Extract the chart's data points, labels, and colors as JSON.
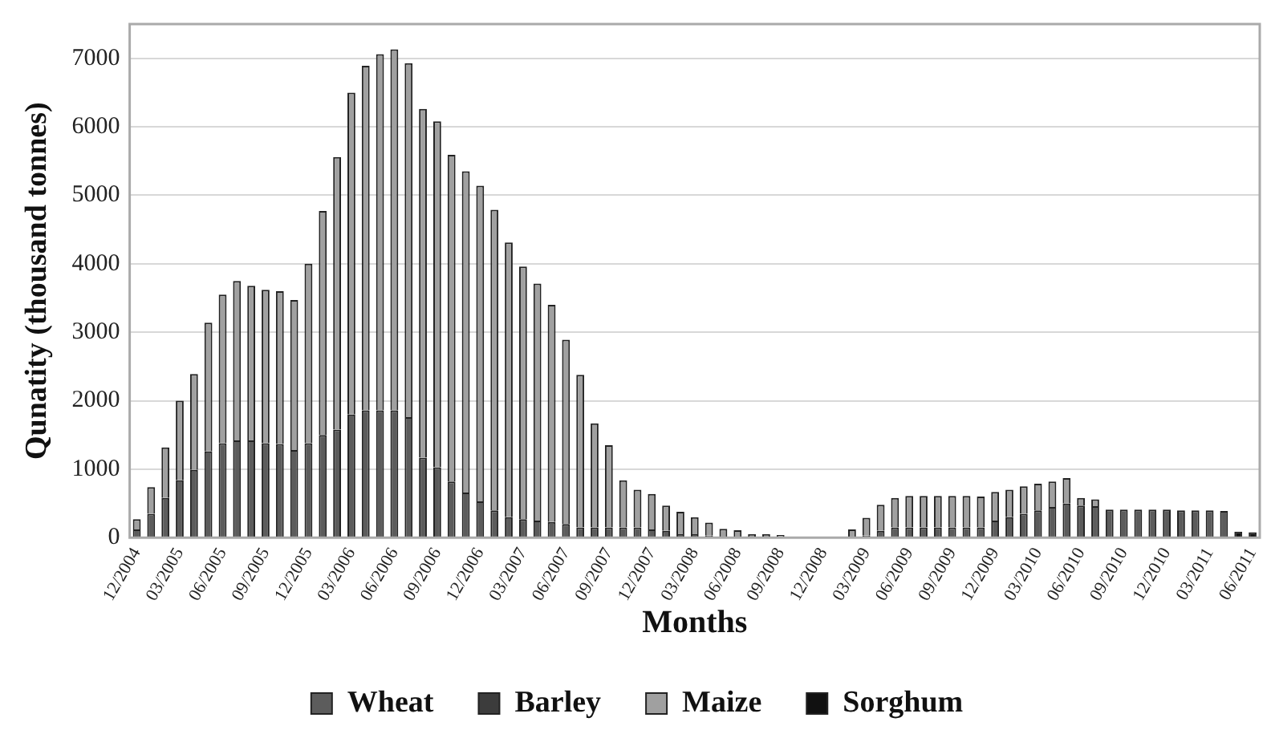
{
  "chart_data": {
    "type": "bar",
    "stacked": true,
    "xlabel": "Months",
    "ylabel": "Qunatity (thousand tonnes)",
    "categories": [
      "12/2004",
      null,
      null,
      "03/2005",
      null,
      null,
      "06/2005",
      null,
      null,
      "09/2005",
      null,
      null,
      "12/2005",
      null,
      null,
      "03/2006",
      null,
      null,
      "06/2006",
      null,
      null,
      "09/2006",
      null,
      null,
      "12/2006",
      null,
      null,
      "03/2007",
      null,
      null,
      "06/2007",
      null,
      null,
      "09/2007",
      null,
      null,
      "12/2007",
      null,
      null,
      "03/2008",
      null,
      null,
      "06/2008",
      null,
      null,
      "09/2008",
      null,
      null,
      "12/2008",
      null,
      null,
      "03/2009",
      null,
      null,
      "06/2009",
      null,
      null,
      "09/2009",
      null,
      null,
      "12/2009",
      null,
      null,
      "03/2010",
      null,
      null,
      "06/2010",
      null,
      null,
      "09/2010",
      null,
      null,
      "12/2010",
      null,
      null,
      "03/2011",
      null,
      null,
      "06/2011"
    ],
    "series": [
      {
        "name": "Wheat",
        "color": "#5c5c5c",
        "values": [
          120,
          350,
          580,
          840,
          990,
          1260,
          1380,
          1420,
          1420,
          1380,
          1370,
          1280,
          1380,
          1500,
          1580,
          1800,
          1860,
          1860,
          1860,
          1760,
          1170,
          1030,
          820,
          660,
          530,
          400,
          300,
          270,
          250,
          230,
          200,
          150,
          150,
          150,
          150,
          150,
          120,
          100,
          50,
          50,
          30,
          null,
          null,
          null,
          null,
          null,
          null,
          null,
          null,
          null,
          null,
          30,
          100,
          150,
          150,
          150,
          150,
          150,
          150,
          150,
          250,
          300,
          350,
          400,
          450,
          500,
          470,
          460,
          410,
          410,
          410,
          410,
          410,
          400,
          400,
          400,
          390,
          null,
          null
        ]
      },
      {
        "name": "Barley",
        "color": "#3c3c3c",
        "values": [
          null,
          null,
          null,
          null,
          null,
          null,
          null,
          null,
          null,
          null,
          null,
          null,
          null,
          null,
          null,
          null,
          null,
          null,
          null,
          null,
          null,
          null,
          null,
          null,
          null,
          null,
          null,
          null,
          null,
          null,
          null,
          null,
          null,
          null,
          null,
          null,
          null,
          null,
          null,
          null,
          null,
          null,
          null,
          null,
          null,
          null,
          null,
          null,
          null,
          null,
          null,
          null,
          null,
          null,
          null,
          null,
          null,
          null,
          null,
          null,
          null,
          null,
          null,
          null,
          null,
          null,
          null,
          null,
          null,
          null,
          null,
          null,
          null,
          null,
          null,
          null,
          null,
          null,
          null
        ]
      },
      {
        "name": "Maize",
        "color": "#a0a0a0",
        "values": [
          150,
          390,
          740,
          1160,
          1400,
          1880,
          2170,
          2330,
          2260,
          2240,
          2230,
          2190,
          2620,
          3270,
          3980,
          4700,
          5030,
          5200,
          5270,
          5170,
          5090,
          5050,
          4770,
          4690,
          4610,
          4390,
          4010,
          3690,
          3460,
          3170,
          2690,
          2230,
          1520,
          1200,
          690,
          550,
          520,
          370,
          330,
          250,
          190,
          130,
          110,
          50,
          50,
          40,
          10,
          10,
          10,
          10,
          120,
          260,
          380,
          430,
          460,
          460,
          460,
          460,
          460,
          450,
          420,
          400,
          400,
          390,
          370,
          370,
          110,
          100,
          null,
          null,
          null,
          null,
          null,
          null,
          null,
          null,
          null,
          null,
          null
        ]
      },
      {
        "name": "Sorghum",
        "color": "#111111",
        "values": [
          null,
          null,
          null,
          null,
          null,
          null,
          null,
          null,
          null,
          null,
          null,
          null,
          null,
          null,
          null,
          null,
          null,
          null,
          null,
          null,
          null,
          null,
          null,
          null,
          null,
          null,
          null,
          null,
          null,
          null,
          null,
          null,
          null,
          null,
          null,
          null,
          null,
          null,
          null,
          null,
          null,
          null,
          null,
          null,
          null,
          null,
          null,
          null,
          null,
          null,
          null,
          null,
          null,
          null,
          null,
          null,
          null,
          null,
          null,
          null,
          null,
          null,
          null,
          null,
          null,
          null,
          null,
          null,
          null,
          null,
          null,
          null,
          null,
          null,
          null,
          null,
          null,
          90,
          80
        ]
      }
    ],
    "ylim": [
      0,
      7500
    ],
    "yticks": [
      0,
      1000,
      2000,
      3000,
      4000,
      5000,
      6000,
      7000
    ],
    "grid": "y",
    "legend": "bottom"
  }
}
